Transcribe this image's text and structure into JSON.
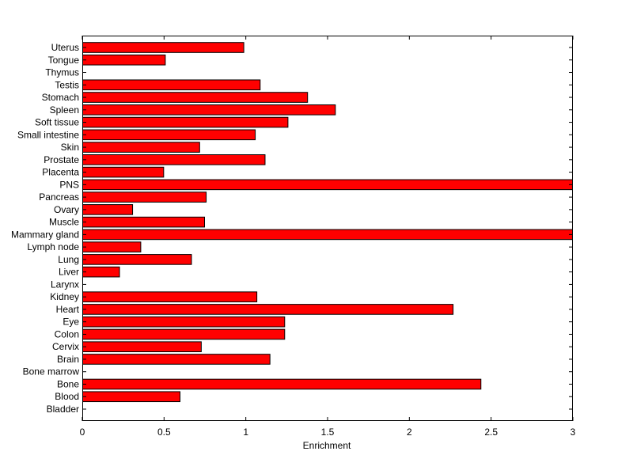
{
  "chart_data": {
    "type": "bar",
    "orientation": "horizontal",
    "title": "",
    "xlabel": "Enrichment",
    "ylabel": "",
    "xlim": [
      0,
      3
    ],
    "xticks": [
      "0",
      "0.5",
      "1",
      "1.5",
      "2",
      "2.5",
      "3"
    ],
    "grid": false,
    "legend": "none",
    "bar_color": "#ff0000",
    "edge_color": "#000000",
    "categories": [
      "Bladder",
      "Blood",
      "Bone",
      "Bone marrow",
      "Brain",
      "Cervix",
      "Colon",
      "Eye",
      "Heart",
      "Kidney",
      "Larynx",
      "Liver",
      "Lung",
      "Lymph node",
      "Mammary gland",
      "Muscle",
      "Ovary",
      "Pancreas",
      "PNS",
      "Placenta",
      "Prostate",
      "Skin",
      "Small intestine",
      "Soft tissue",
      "Spleen",
      "Stomach",
      "Testis",
      "Thymus",
      "Tongue",
      "Uterus"
    ],
    "values": [
      0,
      0.6,
      2.44,
      0,
      1.15,
      0.73,
      1.24,
      1.24,
      2.27,
      1.07,
      0,
      0.23,
      0.67,
      0.36,
      3.0,
      0.75,
      0.31,
      0.76,
      3.0,
      0.5,
      1.12,
      0.72,
      1.06,
      1.26,
      1.55,
      1.38,
      1.09,
      0,
      0.51,
      0.99
    ]
  }
}
